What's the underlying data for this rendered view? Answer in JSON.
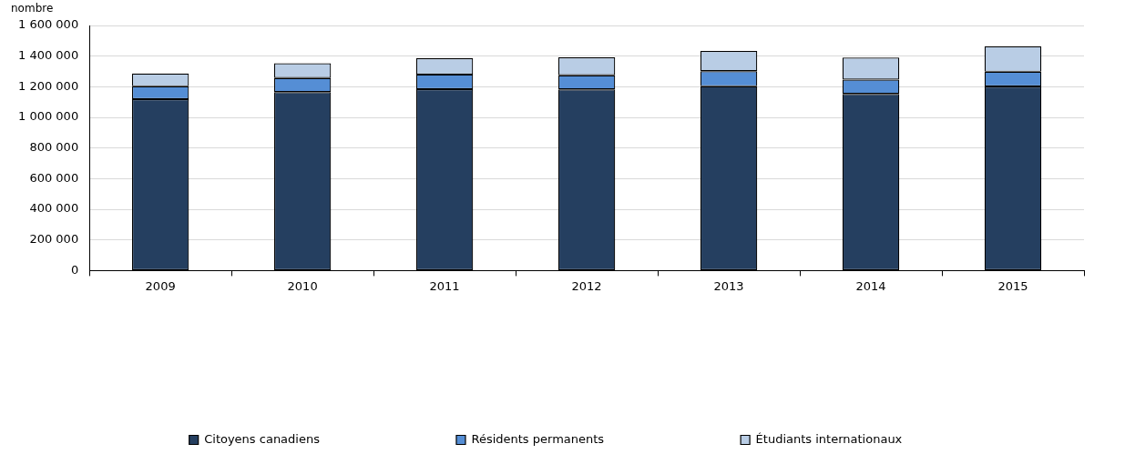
{
  "chart_data": {
    "type": "bar",
    "stacked": true,
    "ylabel": "nombre",
    "categories": [
      "2009",
      "2010",
      "2011",
      "2012",
      "2013",
      "2014",
      "2015"
    ],
    "series": [
      {
        "name": "Citoyens canadiens",
        "color": "#253f60",
        "values": [
          1119000,
          1165000,
          1184000,
          1183000,
          1203000,
          1153000,
          1202000
        ]
      },
      {
        "name": "Résidents permanents",
        "color": "#558ed5",
        "values": [
          84000,
          92000,
          96000,
          92000,
          99000,
          94000,
          96000
        ]
      },
      {
        "name": "Étudiants internationaux",
        "color": "#b9cde5",
        "values": [
          84000,
          96000,
          106000,
          117000,
          132000,
          143000,
          166000
        ]
      }
    ],
    "ylim": [
      0,
      1600000
    ],
    "yticks": [
      {
        "value": 0,
        "label": "0"
      },
      {
        "value": 200000,
        "label": "200 000"
      },
      {
        "value": 400000,
        "label": "400 000"
      },
      {
        "value": 600000,
        "label": "600 000"
      },
      {
        "value": 800000,
        "label": "800 000"
      },
      {
        "value": 1000000,
        "label": "1 000 000"
      },
      {
        "value": 1200000,
        "label": "1 200 000"
      },
      {
        "value": 1400000,
        "label": "1 400 000"
      },
      {
        "value": 1600000,
        "label": "1 600 000"
      }
    ],
    "grid": "y",
    "legend": "bottom"
  }
}
